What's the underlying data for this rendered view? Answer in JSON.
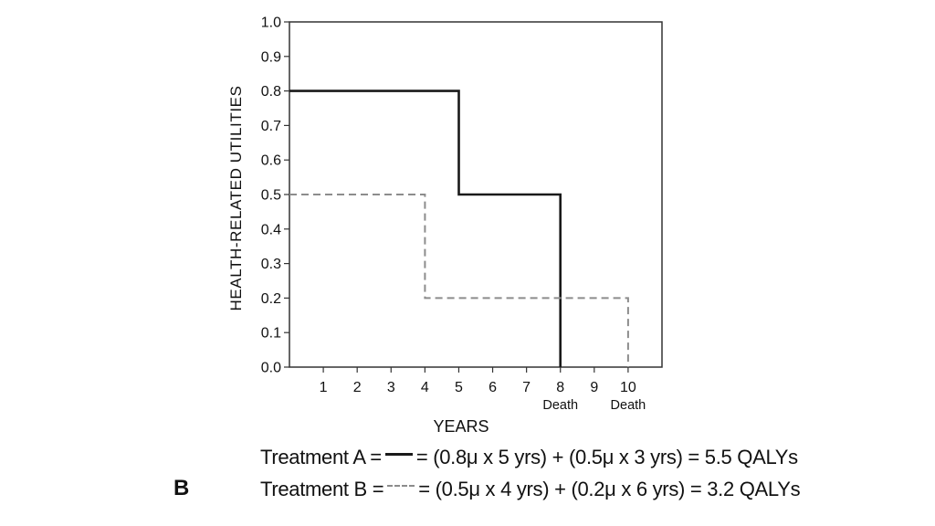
{
  "panel_label": "B",
  "legend": [
    {
      "name": "Treatment A =",
      "formula": "= (0.8μ x 5 yrs) + (0.5μ x 3 yrs) = 5.5 QALYs",
      "color": "#1a1a1a",
      "style": "solid"
    },
    {
      "name": "Treatment B =",
      "formula": "= (0.5μ x 4 yrs) + (0.2μ x 6 yrs) = 3.2 QALYs",
      "color": "#8c8c8c",
      "style": "dashed"
    }
  ],
  "chart_data": {
    "type": "line",
    "step": true,
    "title": "",
    "xlabel": "YEARS",
    "ylabel": "HEALTH-RELATED UTILITIES",
    "xlim": [
      0,
      11
    ],
    "ylim": [
      0,
      1
    ],
    "x_ticks": [
      1,
      2,
      3,
      4,
      5,
      6,
      7,
      8,
      9,
      10
    ],
    "y_ticks": [
      "0.0",
      "0.1",
      "0.2",
      "0.3",
      "0.4",
      "0.5",
      "0.6",
      "0.7",
      "0.8",
      "0.9",
      "1.0"
    ],
    "x_annotations": [
      {
        "x": 8,
        "text": "Death"
      },
      {
        "x": 10,
        "text": "Death"
      }
    ],
    "grid": false,
    "series": [
      {
        "name": "Treatment A",
        "color": "#1a1a1a",
        "style": "solid",
        "points": [
          [
            0,
            0.8
          ],
          [
            5,
            0.8
          ],
          [
            5,
            0.5
          ],
          [
            8,
            0.5
          ],
          [
            8,
            0
          ]
        ]
      },
      {
        "name": "Treatment B",
        "color": "#8c8c8c",
        "style": "dashed",
        "points": [
          [
            0,
            0.5
          ],
          [
            4,
            0.5
          ],
          [
            4,
            0.2
          ],
          [
            10,
            0.2
          ],
          [
            10,
            0
          ]
        ]
      }
    ]
  }
}
